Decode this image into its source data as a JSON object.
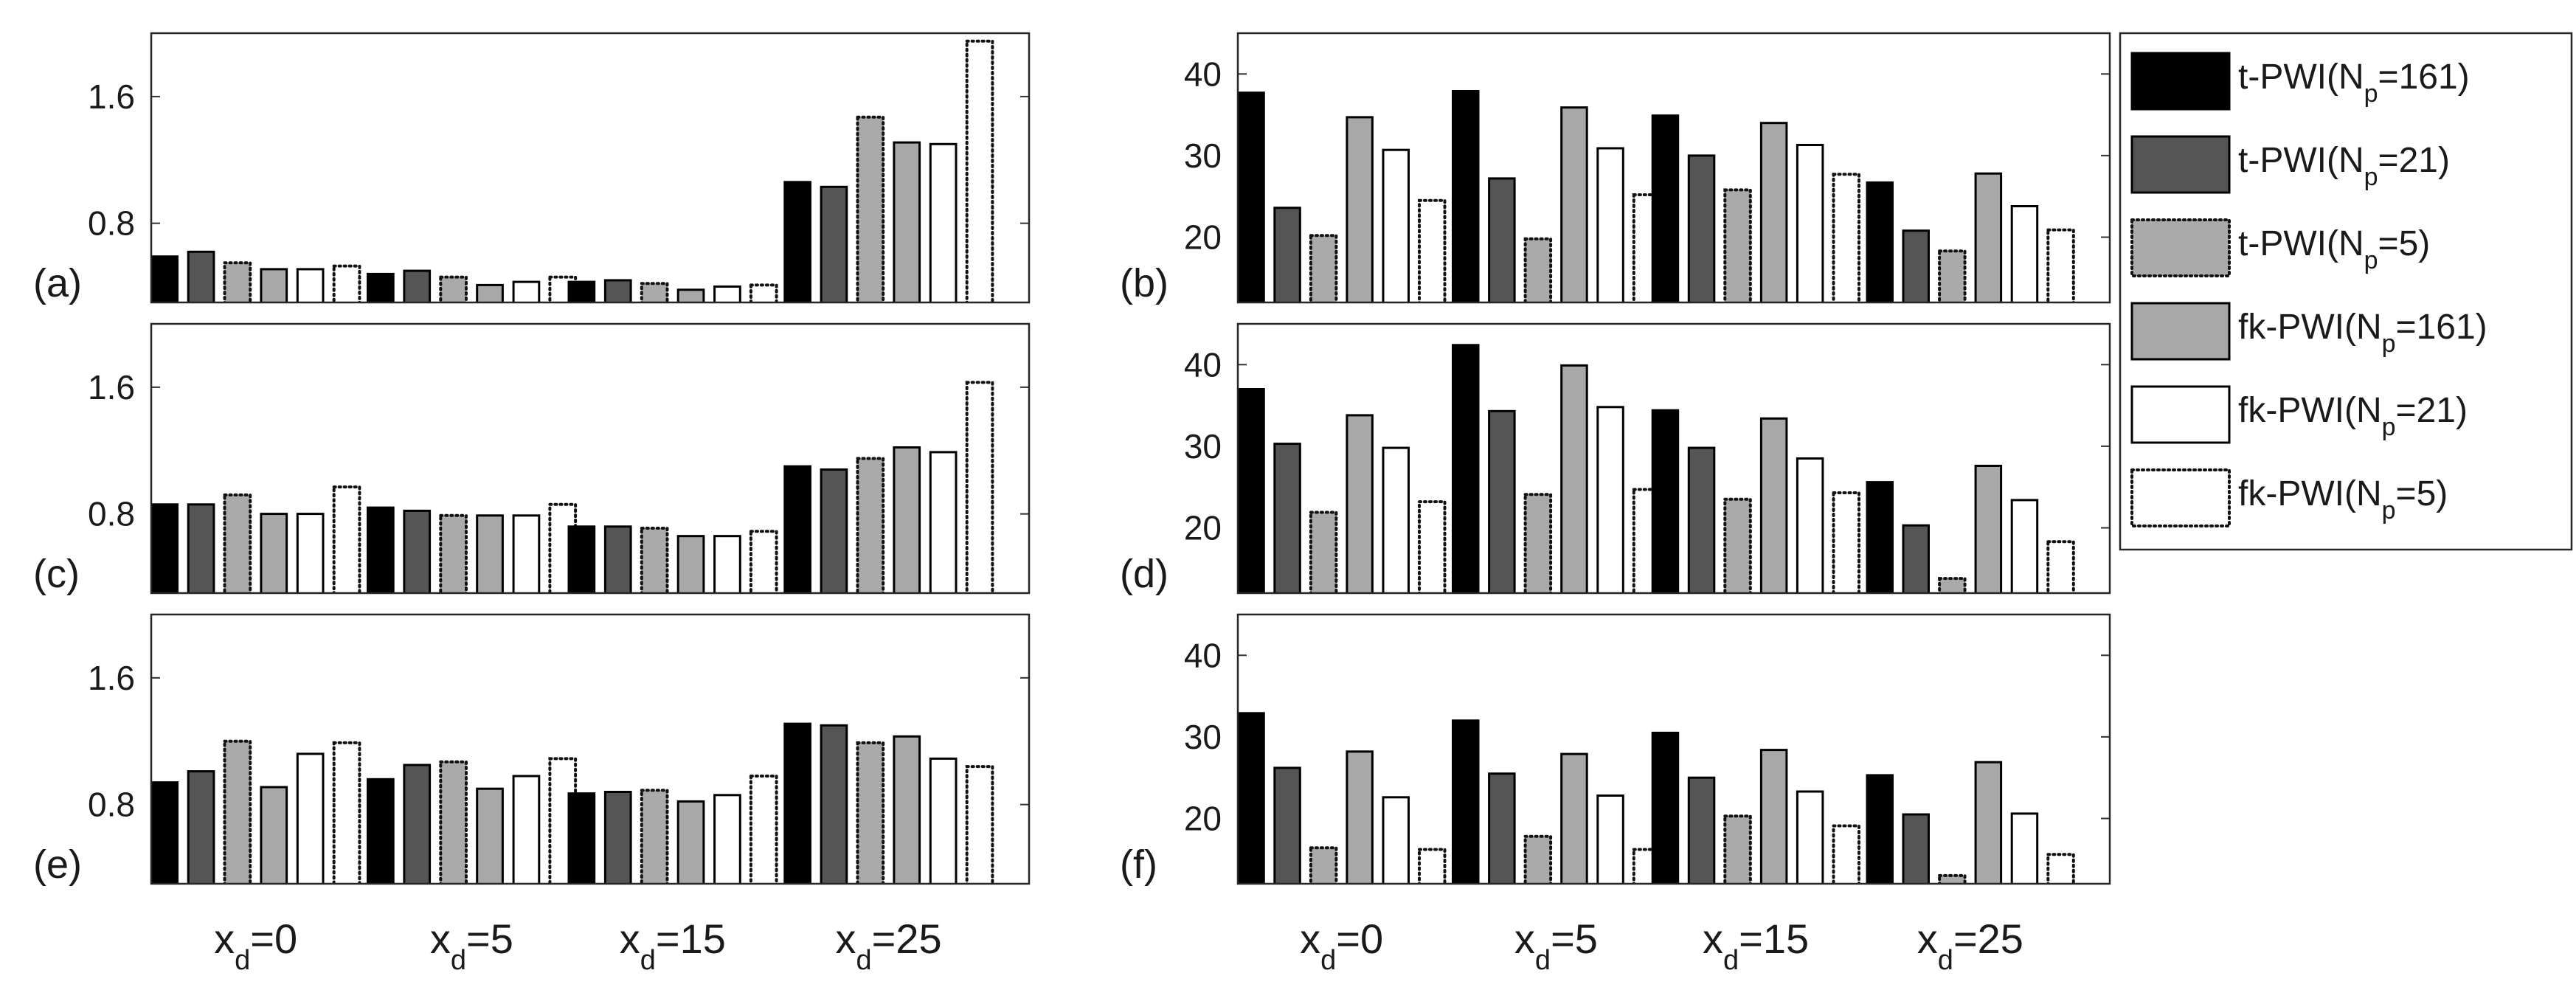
{
  "chart_data": {
    "type": "bar",
    "categories": [
      {
        "base": "x",
        "sub": "d",
        "rest": "=0"
      },
      {
        "base": "x",
        "sub": "d",
        "rest": "=5"
      },
      {
        "base": "x",
        "sub": "d",
        "rest": "=15"
      },
      {
        "base": "x",
        "sub": "d",
        "rest": "=25"
      }
    ],
    "legend": [
      {
        "pre": "t-PWI(N",
        "sub": "p",
        "post": "=161)",
        "style": "black"
      },
      {
        "pre": "t-PWI(N",
        "sub": "p",
        "post": "=21)",
        "style": "dark"
      },
      {
        "pre": "t-PWI(N",
        "sub": "p",
        "post": "=5)",
        "style": "gray-dotted"
      },
      {
        "pre": "fk-PWI(N",
        "sub": "p",
        "post": "=161)",
        "style": "gray"
      },
      {
        "pre": "fk-PWI(N",
        "sub": "p",
        "post": "=21)",
        "style": "white"
      },
      {
        "pre": "fk-PWI(N",
        "sub": "p",
        "post": "=5)",
        "style": "white-dotted"
      }
    ],
    "colors": {
      "black": "#000000",
      "dark": "#555555",
      "gray_dotted": "#aaaaaa",
      "gray": "#a8a8a8",
      "white": "#ffffff",
      "white_dotted": "#ffffff"
    },
    "panels": [
      {
        "id": "a",
        "label": "(a)",
        "ylim": [
          0.3,
          2.0
        ],
        "yticks": [
          0.8,
          1.6
        ],
        "tick_labels": [
          "0.8",
          "1.6"
        ],
        "series": [
          [
            0.59,
            0.48,
            0.43,
            1.06
          ],
          [
            0.62,
            0.5,
            0.44,
            1.03
          ],
          [
            0.55,
            0.46,
            0.42,
            1.47
          ],
          [
            0.51,
            0.41,
            0.38,
            1.31
          ],
          [
            0.51,
            0.43,
            0.4,
            1.3
          ],
          [
            0.53,
            0.46,
            0.41,
            1.95
          ]
        ]
      },
      {
        "id": "b",
        "label": "(b)",
        "ylim": [
          12,
          45
        ],
        "yticks": [
          20,
          30,
          40
        ],
        "tick_labels": [
          "20",
          "30",
          "40"
        ],
        "series": [
          [
            37.7,
            37.9,
            34.9,
            26.7
          ],
          [
            23.6,
            27.2,
            30.0,
            20.8
          ],
          [
            20.2,
            19.8,
            25.8,
            18.3
          ],
          [
            34.7,
            35.9,
            34.0,
            27.8
          ],
          [
            30.7,
            30.9,
            31.3,
            23.8
          ],
          [
            24.5,
            25.2,
            27.7,
            20.9
          ]
        ]
      },
      {
        "id": "c",
        "label": "(c)",
        "ylim": [
          0.3,
          2.0
        ],
        "yticks": [
          0.8,
          1.6
        ],
        "tick_labels": [
          "0.8",
          "1.6"
        ],
        "series": [
          [
            0.86,
            0.84,
            0.72,
            1.1
          ],
          [
            0.86,
            0.82,
            0.72,
            1.08
          ],
          [
            0.92,
            0.79,
            0.71,
            1.15
          ],
          [
            0.8,
            0.79,
            0.66,
            1.22
          ],
          [
            0.8,
            0.79,
            0.66,
            1.19
          ],
          [
            0.97,
            0.86,
            0.69,
            1.63
          ]
        ]
      },
      {
        "id": "d",
        "label": "(d)",
        "ylim": [
          12,
          45
        ],
        "yticks": [
          20,
          30,
          40
        ],
        "tick_labels": [
          "20",
          "30",
          "40"
        ],
        "series": [
          [
            37.0,
            42.4,
            34.4,
            25.6
          ],
          [
            30.3,
            34.3,
            29.8,
            20.3
          ],
          [
            21.9,
            24.1,
            23.5,
            13.8
          ],
          [
            33.8,
            39.9,
            33.4,
            27.6
          ],
          [
            29.8,
            34.8,
            28.5,
            23.4
          ],
          [
            23.2,
            24.7,
            24.3,
            18.3
          ]
        ]
      },
      {
        "id": "e",
        "label": "(e)",
        "ylim": [
          0.3,
          2.0
        ],
        "yticks": [
          0.8,
          1.6
        ],
        "tick_labels": [
          "0.8",
          "1.6"
        ],
        "series": [
          [
            0.94,
            0.96,
            0.87,
            1.31
          ],
          [
            1.01,
            1.05,
            0.88,
            1.3
          ],
          [
            1.2,
            1.07,
            0.89,
            1.19
          ],
          [
            0.91,
            0.9,
            0.82,
            1.23
          ],
          [
            1.12,
            0.98,
            0.86,
            1.09
          ],
          [
            1.19,
            1.09,
            0.98,
            1.04
          ]
        ]
      },
      {
        "id": "f",
        "label": "(f)",
        "ylim": [
          12,
          45
        ],
        "yticks": [
          20,
          30,
          40
        ],
        "tick_labels": [
          "20",
          "30",
          "40"
        ],
        "series": [
          [
            32.9,
            32.0,
            30.5,
            25.3
          ],
          [
            26.2,
            25.5,
            25.0,
            20.5
          ],
          [
            16.4,
            17.8,
            20.3,
            13.0
          ],
          [
            28.2,
            27.9,
            28.4,
            26.9
          ],
          [
            22.6,
            22.8,
            23.3,
            20.6
          ],
          [
            16.2,
            16.2,
            19.1,
            15.6
          ]
        ]
      }
    ]
  }
}
